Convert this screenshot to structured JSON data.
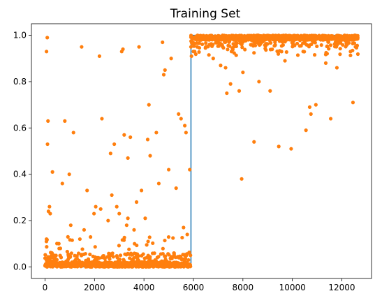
{
  "chart_data": {
    "type": "scatter",
    "title": "Training Set",
    "xlabel": "",
    "ylabel": "",
    "xlim": [
      -550,
      13200
    ],
    "ylim": [
      -0.05,
      1.05
    ],
    "xticks": [
      0,
      2000,
      4000,
      6000,
      8000,
      10000,
      12000
    ],
    "yticks": [
      0.0,
      0.2,
      0.4,
      0.6,
      0.8,
      1.0
    ],
    "xtick_labels": [
      "0",
      "2000",
      "4000",
      "6000",
      "8000",
      "10000",
      "12000"
    ],
    "ytick_labels": [
      "0.0",
      "0.2",
      "0.4",
      "0.6",
      "0.8",
      "1.0"
    ],
    "grid": false,
    "n_points": 12650,
    "series": [
      {
        "kind": "line",
        "color": "#1f77b4",
        "x": [
          0,
          5900,
          5900,
          12650
        ],
        "y": [
          0,
          0,
          1,
          1
        ]
      },
      {
        "kind": "scatter",
        "color": "#ff7f0e",
        "marker": "dot",
        "x": [
          60,
          90,
          120,
          60,
          100,
          60,
          140,
          180,
          210,
          300,
          620,
          700,
          800,
          980,
          1040,
          1150,
          1480,
          1580,
          1700,
          1980,
          2050,
          2200,
          2250,
          2300,
          2550,
          2650,
          2700,
          2800,
          2900,
          3000,
          3050,
          3100,
          3150,
          3200,
          3300,
          3350,
          3350,
          3450,
          3600,
          3700,
          3800,
          3900,
          4050,
          4150,
          4200,
          4250,
          4500,
          4600,
          4750,
          4800,
          4850,
          5000,
          5100,
          5300,
          5400,
          5500,
          5600,
          5650,
          5700,
          5750,
          5800,
          5850,
          5880,
          5900,
          5920,
          5950,
          6050,
          6150,
          6300,
          6500,
          6650,
          6800,
          7000,
          7100,
          7300,
          7350,
          7500,
          7700,
          7850,
          7950,
          8000,
          8450,
          8650,
          9100,
          9450,
          9700,
          9950,
          10550,
          10700,
          10750,
          10950,
          11350,
          11550,
          11800,
          12350,
          12450,
          12550
        ],
        "y": [
          0.93,
          0.99,
          0.63,
          0.12,
          0.53,
          0.03,
          0.24,
          0.26,
          0.23,
          0.41,
          0.08,
          0.36,
          0.63,
          0.4,
          0.18,
          0.58,
          0.95,
          0.16,
          0.33,
          0.23,
          0.26,
          0.91,
          0.25,
          0.64,
          0.2,
          0.49,
          0.31,
          0.53,
          0.26,
          0.23,
          0.05,
          0.93,
          0.94,
          0.57,
          0.18,
          0.21,
          0.47,
          0.56,
          0.16,
          0.28,
          0.95,
          0.33,
          0.21,
          0.55,
          0.7,
          0.48,
          0.58,
          0.36,
          0.97,
          0.83,
          0.85,
          0.42,
          0.9,
          0.34,
          0.66,
          0.64,
          0.17,
          0.61,
          0.58,
          0.14,
          0.03,
          0.42,
          0.05,
          0.95,
          0.91,
          0.97,
          0.93,
          0.95,
          0.98,
          0.95,
          0.96,
          0.9,
          0.97,
          0.87,
          0.86,
          0.75,
          0.79,
          0.98,
          0.76,
          0.38,
          0.84,
          0.54,
          0.8,
          0.76,
          0.52,
          0.89,
          0.51,
          0.59,
          0.69,
          0.66,
          0.7,
          0.88,
          0.64,
          0.86,
          0.93,
          0.71,
          0.95
        ]
      }
    ]
  }
}
